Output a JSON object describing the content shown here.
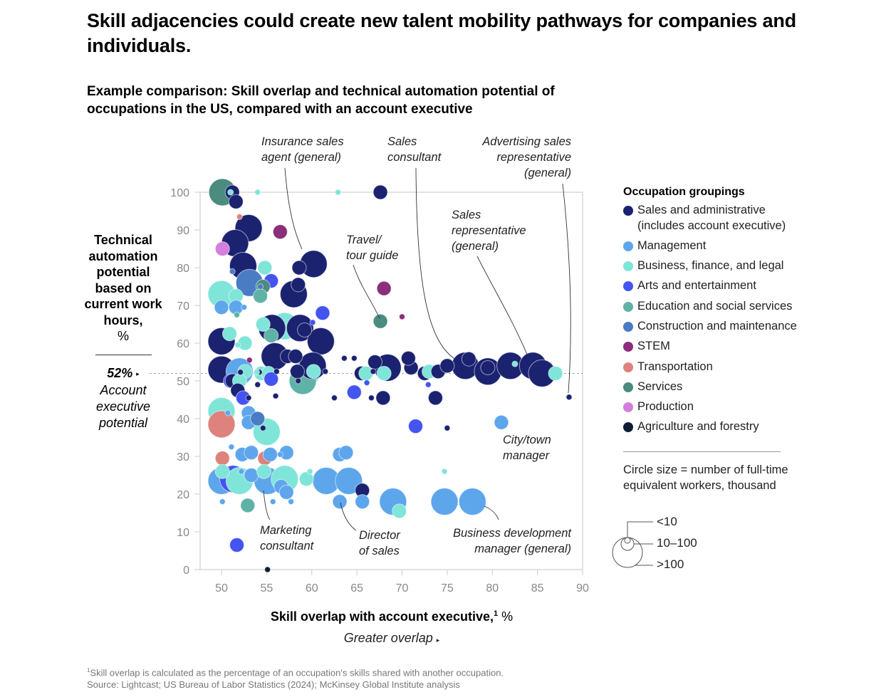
{
  "title": "Skill adjacencies could create new talent mobility pathways for companies and individuals.",
  "subtitle": "Example comparison: Skill overlap and technical automation potential of occupations in the US, compared with an account executive",
  "y_axis": {
    "label": "Technical automation potential based on current work hours,",
    "unit": "%",
    "reference_value": "52%",
    "reference_label": "Account executive potential"
  },
  "x_axis": {
    "label": "Skill overlap with account executive,",
    "footnote_marker": "1",
    "unit": "%",
    "direction_label": "Greater overlap"
  },
  "legend": {
    "title": "Occupation groupings",
    "items": [
      {
        "key": "sales",
        "label": "Sales and administrative (includes account executive)",
        "color": "#1b2270"
      },
      {
        "key": "mgmt",
        "label": "Management",
        "color": "#5ea6ec"
      },
      {
        "key": "biz",
        "label": "Business, finance, and legal",
        "color": "#7fe5d8"
      },
      {
        "key": "arts",
        "label": "Arts and entertainment",
        "color": "#4454f0"
      },
      {
        "key": "edu",
        "label": "Education and social services",
        "color": "#5fb3a6"
      },
      {
        "key": "constr",
        "label": "Construction and maintenance",
        "color": "#4a7cc4"
      },
      {
        "key": "stem",
        "label": "STEM",
        "color": "#8b2e7b"
      },
      {
        "key": "transp",
        "label": "Transportation",
        "color": "#dd827c"
      },
      {
        "key": "serv",
        "label": "Services",
        "color": "#4b8b80"
      },
      {
        "key": "prod",
        "label": "Production",
        "color": "#d57fdc"
      },
      {
        "key": "agri",
        "label": "Agriculture and forestry",
        "color": "#0f1e33"
      }
    ]
  },
  "size_legend": {
    "title": "Circle size = number of full-time equivalent workers, thousand",
    "labels": [
      "<10",
      "10–100",
      ">100"
    ]
  },
  "footnote": "Skill overlap is calculated as the percentage of an occupation's skills shared with another occupation.",
  "footnote_marker": "1",
  "source": "Source: Lightcast; US Bureau of Labor Statistics (2024); McKinsey Global Institute analysis",
  "chart_data": {
    "type": "scatter",
    "title": "Skill overlap and technical automation potential of occupations in the US, compared with an account executive",
    "xlabel": "Skill overlap with account executive, %",
    "ylabel": "Technical automation potential based on current work hours, %",
    "xlim": [
      47.5,
      90
    ],
    "ylim": [
      0,
      100
    ],
    "xticks": [
      50,
      55,
      60,
      65,
      70,
      75,
      80,
      85,
      90
    ],
    "yticks": [
      0,
      10,
      20,
      30,
      40,
      50,
      60,
      70,
      80,
      90,
      100
    ],
    "reference_line": {
      "y": 52,
      "label": "Account executive potential"
    },
    "size_encoding": "FTE workers, thousand: s = <10, m = 10–100, l = >100",
    "points": [
      {
        "x": 50.1,
        "y": 100,
        "g": "serv",
        "s": "l"
      },
      {
        "x": 51.0,
        "y": 100,
        "g": "biz",
        "s": "s"
      },
      {
        "x": 51.2,
        "y": 100,
        "g": "sales",
        "s": "m"
      },
      {
        "x": 51.6,
        "y": 97.5,
        "g": "sales",
        "s": "m"
      },
      {
        "x": 54.0,
        "y": 100,
        "g": "biz",
        "s": "s"
      },
      {
        "x": 62.9,
        "y": 100,
        "g": "biz",
        "s": "s"
      },
      {
        "x": 67.6,
        "y": 100,
        "g": "sales",
        "s": "m"
      },
      {
        "x": 53.0,
        "y": 90.5,
        "g": "sales",
        "s": "l"
      },
      {
        "x": 52.0,
        "y": 93.5,
        "g": "transp",
        "s": "s"
      },
      {
        "x": 56.5,
        "y": 89.5,
        "g": "stem",
        "s": "m"
      },
      {
        "x": 51.5,
        "y": 86.5,
        "g": "sales",
        "s": "l"
      },
      {
        "x": 50.1,
        "y": 85.0,
        "g": "prod",
        "s": "m"
      },
      {
        "x": 52.4,
        "y": 80.5,
        "g": "sales",
        "s": "l"
      },
      {
        "x": 51.2,
        "y": 79.0,
        "g": "constr",
        "s": "s"
      },
      {
        "x": 60.2,
        "y": 81.0,
        "g": "sales",
        "s": "l"
      },
      {
        "x": 58.6,
        "y": 80.0,
        "g": "sales",
        "s": "m"
      },
      {
        "x": 54.8,
        "y": 80.0,
        "g": "biz",
        "s": "m"
      },
      {
        "x": 53.1,
        "y": 76.0,
        "g": "constr",
        "s": "l"
      },
      {
        "x": 54.3,
        "y": 75.0,
        "g": "constr",
        "s": "s"
      },
      {
        "x": 55.5,
        "y": 76.5,
        "g": "arts",
        "s": "m"
      },
      {
        "x": 54.6,
        "y": 75.0,
        "g": "serv",
        "s": "m"
      },
      {
        "x": 54.3,
        "y": 72.5,
        "g": "edu",
        "s": "m"
      },
      {
        "x": 50.0,
        "y": 73.0,
        "g": "biz",
        "s": "l"
      },
      {
        "x": 51.6,
        "y": 72.5,
        "g": "biz",
        "s": "m"
      },
      {
        "x": 50.0,
        "y": 69.5,
        "g": "mgmt",
        "s": "m"
      },
      {
        "x": 51.6,
        "y": 69.5,
        "g": "mgmt",
        "s": "m"
      },
      {
        "x": 52.5,
        "y": 69.5,
        "g": "mgmt",
        "s": "s"
      },
      {
        "x": 51.7,
        "y": 67.5,
        "g": "edu",
        "s": "s"
      },
      {
        "x": 58.0,
        "y": 73.0,
        "g": "sales",
        "s": "l"
      },
      {
        "x": 58.5,
        "y": 75.5,
        "g": "sales",
        "s": "m"
      },
      {
        "x": 61.2,
        "y": 68.0,
        "g": "arts",
        "s": "m"
      },
      {
        "x": 60.1,
        "y": 65.5,
        "g": "arts",
        "s": "s"
      },
      {
        "x": 57.0,
        "y": 64.5,
        "g": "biz",
        "s": "l"
      },
      {
        "x": 55.6,
        "y": 64.0,
        "g": "sales",
        "s": "l"
      },
      {
        "x": 54.6,
        "y": 65.0,
        "g": "biz",
        "s": "m"
      },
      {
        "x": 55.5,
        "y": 62.0,
        "g": "edu",
        "s": "m"
      },
      {
        "x": 58.7,
        "y": 64.0,
        "g": "sales",
        "s": "l"
      },
      {
        "x": 59.2,
        "y": 63.5,
        "g": "sales",
        "s": "m"
      },
      {
        "x": 61.0,
        "y": 60.5,
        "g": "sales",
        "s": "l"
      },
      {
        "x": 67.6,
        "y": 65.8,
        "g": "serv",
        "s": "m"
      },
      {
        "x": 68.0,
        "y": 74.5,
        "g": "stem",
        "s": "m"
      },
      {
        "x": 70.0,
        "y": 67.0,
        "g": "stem",
        "s": "s"
      },
      {
        "x": 50.0,
        "y": 60.5,
        "g": "sales",
        "s": "l"
      },
      {
        "x": 50.9,
        "y": 62.5,
        "g": "biz",
        "s": "m"
      },
      {
        "x": 52.6,
        "y": 60.0,
        "g": "biz",
        "s": "m"
      },
      {
        "x": 51.8,
        "y": 59.5,
        "g": "biz",
        "s": "s"
      },
      {
        "x": 50.0,
        "y": 53.0,
        "g": "sales",
        "s": "l"
      },
      {
        "x": 52.0,
        "y": 52.5,
        "g": "mgmt",
        "s": "l"
      },
      {
        "x": 51.0,
        "y": 50.0,
        "g": "arts",
        "s": "m"
      },
      {
        "x": 51.2,
        "y": 50.0,
        "g": "sales",
        "s": "m"
      },
      {
        "x": 52.6,
        "y": 52.5,
        "g": "biz",
        "s": "m"
      },
      {
        "x": 53.1,
        "y": 55.5,
        "g": "stem",
        "s": "s"
      },
      {
        "x": 52.1,
        "y": 52.3,
        "g": "sales",
        "s": "s"
      },
      {
        "x": 54.4,
        "y": 52.0,
        "g": "biz",
        "s": "m"
      },
      {
        "x": 54.2,
        "y": 52.3,
        "g": "sales",
        "s": "s"
      },
      {
        "x": 53.9,
        "y": 52.3,
        "g": "biz",
        "s": "s"
      },
      {
        "x": 55.9,
        "y": 56.5,
        "g": "sales",
        "s": "l"
      },
      {
        "x": 57.3,
        "y": 56.5,
        "g": "sales",
        "s": "m"
      },
      {
        "x": 58.2,
        "y": 56.5,
        "g": "sales",
        "s": "m"
      },
      {
        "x": 55.2,
        "y": 52.0,
        "g": "biz",
        "s": "m"
      },
      {
        "x": 56.1,
        "y": 52.5,
        "g": "sales",
        "s": "s"
      },
      {
        "x": 58.4,
        "y": 52.5,
        "g": "sales",
        "s": "m"
      },
      {
        "x": 59.4,
        "y": 52.0,
        "g": "biz",
        "s": "l"
      },
      {
        "x": 59.0,
        "y": 50.0,
        "g": "edu",
        "s": "l"
      },
      {
        "x": 60.1,
        "y": 54.0,
        "g": "sales",
        "s": "l"
      },
      {
        "x": 61.5,
        "y": 52.5,
        "g": "sales",
        "s": "s"
      },
      {
        "x": 60.2,
        "y": 52.5,
        "g": "biz",
        "s": "m"
      },
      {
        "x": 52.0,
        "y": 50.0,
        "g": "biz",
        "s": "m"
      },
      {
        "x": 51.8,
        "y": 47.5,
        "g": "sales",
        "s": "m"
      },
      {
        "x": 52.4,
        "y": 45.5,
        "g": "arts",
        "s": "m"
      },
      {
        "x": 55.5,
        "y": 50.5,
        "g": "arts",
        "s": "m"
      },
      {
        "x": 54.0,
        "y": 49.0,
        "g": "sales",
        "s": "s"
      },
      {
        "x": 56.0,
        "y": 46.0,
        "g": "sales",
        "s": "s"
      },
      {
        "x": 53.0,
        "y": 45.5,
        "g": "sales",
        "s": "s"
      },
      {
        "x": 58.5,
        "y": 50.0,
        "g": "sales",
        "s": "s"
      },
      {
        "x": 63.6,
        "y": 56.0,
        "g": "sales",
        "s": "s"
      },
      {
        "x": 64.7,
        "y": 56.0,
        "g": "sales",
        "s": "s"
      },
      {
        "x": 65.5,
        "y": 52.0,
        "g": "sales",
        "s": "m"
      },
      {
        "x": 66.0,
        "y": 52.0,
        "g": "biz",
        "s": "m"
      },
      {
        "x": 66.8,
        "y": 52.5,
        "g": "sales",
        "s": "s"
      },
      {
        "x": 67.0,
        "y": 55.0,
        "g": "sales",
        "s": "m"
      },
      {
        "x": 68.4,
        "y": 53.5,
        "g": "sales",
        "s": "l"
      },
      {
        "x": 68.0,
        "y": 52.0,
        "g": "biz",
        "s": "m"
      },
      {
        "x": 71.0,
        "y": 53.5,
        "g": "sales",
        "s": "m"
      },
      {
        "x": 70.7,
        "y": 56.0,
        "g": "sales",
        "s": "m"
      },
      {
        "x": 72.5,
        "y": 52.0,
        "g": "sales",
        "s": "m"
      },
      {
        "x": 73.0,
        "y": 52.5,
        "g": "biz",
        "s": "m"
      },
      {
        "x": 74.0,
        "y": 52.5,
        "g": "sales",
        "s": "m"
      },
      {
        "x": 75.0,
        "y": 54.0,
        "g": "sales",
        "s": "m"
      },
      {
        "x": 77.0,
        "y": 54.0,
        "g": "sales",
        "s": "l"
      },
      {
        "x": 77.4,
        "y": 55.8,
        "g": "sales",
        "s": "m"
      },
      {
        "x": 79.5,
        "y": 52.5,
        "g": "sales",
        "s": "l"
      },
      {
        "x": 79.5,
        "y": 53.5,
        "g": "sales",
        "s": "m"
      },
      {
        "x": 82.0,
        "y": 54.0,
        "g": "sales",
        "s": "l"
      },
      {
        "x": 82.5,
        "y": 54.5,
        "g": "biz",
        "s": "s"
      },
      {
        "x": 84.5,
        "y": 54.0,
        "g": "sales",
        "s": "l"
      },
      {
        "x": 85.5,
        "y": 52.0,
        "g": "sales",
        "s": "l"
      },
      {
        "x": 87.0,
        "y": 52.0,
        "g": "biz",
        "s": "m"
      },
      {
        "x": 88.5,
        "y": 45.7,
        "g": "sales",
        "s": "s"
      },
      {
        "x": 62.5,
        "y": 45.5,
        "g": "sales",
        "s": "s"
      },
      {
        "x": 64.7,
        "y": 47.0,
        "g": "arts",
        "s": "m"
      },
      {
        "x": 66.6,
        "y": 45.5,
        "g": "sales",
        "s": "s"
      },
      {
        "x": 67.9,
        "y": 45.5,
        "g": "sales",
        "s": "m"
      },
      {
        "x": 66.1,
        "y": 49.5,
        "g": "arts",
        "s": "s"
      },
      {
        "x": 72.9,
        "y": 49.0,
        "g": "arts",
        "s": "s"
      },
      {
        "x": 73.7,
        "y": 45.5,
        "g": "sales",
        "s": "m"
      },
      {
        "x": 71.5,
        "y": 38.0,
        "g": "arts",
        "s": "m"
      },
      {
        "x": 75.0,
        "y": 37.5,
        "g": "sales",
        "s": "s"
      },
      {
        "x": 81.0,
        "y": 39.0,
        "g": "mgmt",
        "s": "m"
      },
      {
        "x": 50.0,
        "y": 42.0,
        "g": "biz",
        "s": "l"
      },
      {
        "x": 50.0,
        "y": 38.5,
        "g": "transp",
        "s": "l"
      },
      {
        "x": 50.7,
        "y": 41.5,
        "g": "mgmt",
        "s": "s"
      },
      {
        "x": 53.0,
        "y": 41.5,
        "g": "mgmt",
        "s": "m"
      },
      {
        "x": 53.0,
        "y": 39.0,
        "g": "mgmt",
        "s": "m"
      },
      {
        "x": 54.0,
        "y": 40.0,
        "g": "constr",
        "s": "m"
      },
      {
        "x": 55.0,
        "y": 36.5,
        "g": "biz",
        "s": "l"
      },
      {
        "x": 54.6,
        "y": 37.5,
        "g": "sales",
        "s": "s"
      },
      {
        "x": 50.1,
        "y": 29.5,
        "g": "transp",
        "s": "m"
      },
      {
        "x": 51.1,
        "y": 32.5,
        "g": "mgmt",
        "s": "s"
      },
      {
        "x": 52.3,
        "y": 30.5,
        "g": "mgmt",
        "s": "m"
      },
      {
        "x": 53.3,
        "y": 31.0,
        "g": "mgmt",
        "s": "m"
      },
      {
        "x": 54.8,
        "y": 29.5,
        "g": "transp",
        "s": "m"
      },
      {
        "x": 55.4,
        "y": 30.5,
        "g": "mgmt",
        "s": "m"
      },
      {
        "x": 56.5,
        "y": 30.5,
        "g": "mgmt",
        "s": "s"
      },
      {
        "x": 57.2,
        "y": 31.0,
        "g": "mgmt",
        "s": "m"
      },
      {
        "x": 63.1,
        "y": 30.5,
        "g": "mgmt",
        "s": "m"
      },
      {
        "x": 63.8,
        "y": 31.0,
        "g": "mgmt",
        "s": "m"
      },
      {
        "x": 50.0,
        "y": 23.5,
        "g": "mgmt",
        "s": "l"
      },
      {
        "x": 51.3,
        "y": 24.0,
        "g": "arts",
        "s": "l"
      },
      {
        "x": 52.0,
        "y": 23.5,
        "g": "biz",
        "s": "l"
      },
      {
        "x": 50.1,
        "y": 26.0,
        "g": "biz",
        "s": "m"
      },
      {
        "x": 52.2,
        "y": 26.0,
        "g": "mgmt",
        "s": "s"
      },
      {
        "x": 53.3,
        "y": 25.0,
        "g": "mgmt",
        "s": "m"
      },
      {
        "x": 55.1,
        "y": 23.5,
        "g": "mgmt",
        "s": "l"
      },
      {
        "x": 54.7,
        "y": 26.0,
        "g": "biz",
        "s": "m"
      },
      {
        "x": 57.0,
        "y": 24.0,
        "g": "biz",
        "s": "l"
      },
      {
        "x": 56.6,
        "y": 22.0,
        "g": "mgmt",
        "s": "m"
      },
      {
        "x": 57.2,
        "y": 20.5,
        "g": "mgmt",
        "s": "m"
      },
      {
        "x": 59.4,
        "y": 24.0,
        "g": "biz",
        "s": "m"
      },
      {
        "x": 59.8,
        "y": 26.0,
        "g": "biz",
        "s": "s"
      },
      {
        "x": 61.6,
        "y": 23.5,
        "g": "mgmt",
        "s": "l"
      },
      {
        "x": 64.1,
        "y": 23.5,
        "g": "mgmt",
        "s": "l"
      },
      {
        "x": 65.6,
        "y": 21.0,
        "g": "sales",
        "s": "m"
      },
      {
        "x": 63.1,
        "y": 18.0,
        "g": "mgmt",
        "s": "m"
      },
      {
        "x": 65.6,
        "y": 18.0,
        "g": "mgmt",
        "s": "m"
      },
      {
        "x": 69.0,
        "y": 18.0,
        "g": "mgmt",
        "s": "l"
      },
      {
        "x": 69.7,
        "y": 15.5,
        "g": "biz",
        "s": "m"
      },
      {
        "x": 74.7,
        "y": 26.0,
        "g": "biz",
        "s": "s"
      },
      {
        "x": 74.7,
        "y": 18.0,
        "g": "mgmt",
        "s": "l"
      },
      {
        "x": 77.8,
        "y": 18.0,
        "g": "mgmt",
        "s": "l"
      },
      {
        "x": 50.1,
        "y": 18.0,
        "g": "mgmt",
        "s": "s"
      },
      {
        "x": 52.9,
        "y": 17.0,
        "g": "edu",
        "s": "m"
      },
      {
        "x": 55.7,
        "y": 18.0,
        "g": "mgmt",
        "s": "s"
      },
      {
        "x": 57.7,
        "y": 18.0,
        "g": "mgmt",
        "s": "s"
      },
      {
        "x": 51.7,
        "y": 6.5,
        "g": "arts",
        "s": "m"
      },
      {
        "x": 55.1,
        "y": 0,
        "g": "agri",
        "s": "s"
      }
    ],
    "annotations": [
      {
        "label": "Insurance sales agent (general)",
        "x": 60.2,
        "y": 81.0
      },
      {
        "label": "Sales consultant",
        "x": 75.0,
        "y": 54.0
      },
      {
        "label": "Advertising sales representative (general)",
        "x": 88.5,
        "y": 45.7
      },
      {
        "label": "Sales representative (general)",
        "x": 84.5,
        "y": 54.0
      },
      {
        "label": "Travel/ tour guide",
        "x": 67.6,
        "y": 65.8
      },
      {
        "label": "City/town manager",
        "x": 81.0,
        "y": 39.0
      },
      {
        "label": "Marketing consultant",
        "x": 54.7,
        "y": 26.0
      },
      {
        "label": "Director of sales",
        "x": 63.1,
        "y": 18.0
      },
      {
        "label": "Business development manager (general)",
        "x": 77.8,
        "y": 18.0
      }
    ]
  }
}
